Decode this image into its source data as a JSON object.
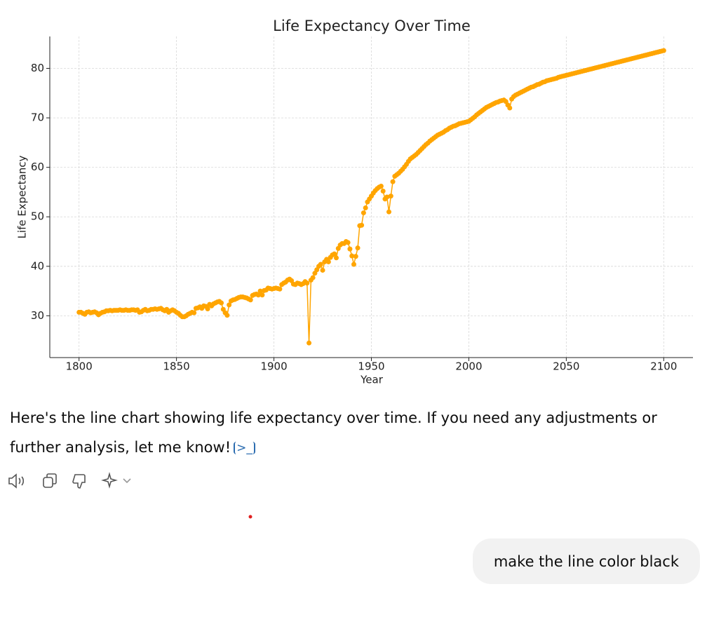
{
  "chart_data": {
    "type": "line",
    "title": "Life Expectancy Over Time",
    "x_label": "Year",
    "y_label": "Life Expectancy",
    "x": [
      1800,
      1801,
      1802,
      1803,
      1804,
      1805,
      1806,
      1807,
      1808,
      1809,
      1810,
      1811,
      1812,
      1813,
      1814,
      1815,
      1816,
      1817,
      1818,
      1819,
      1820,
      1821,
      1822,
      1823,
      1824,
      1825,
      1826,
      1827,
      1828,
      1829,
      1830,
      1831,
      1832,
      1833,
      1834,
      1835,
      1836,
      1837,
      1838,
      1839,
      1840,
      1841,
      1842,
      1843,
      1844,
      1845,
      1846,
      1847,
      1848,
      1849,
      1850,
      1851,
      1852,
      1853,
      1854,
      1855,
      1856,
      1857,
      1858,
      1859,
      1860,
      1861,
      1862,
      1863,
      1864,
      1865,
      1866,
      1867,
      1868,
      1869,
      1870,
      1871,
      1872,
      1873,
      1874,
      1875,
      1876,
      1877,
      1878,
      1879,
      1880,
      1881,
      1882,
      1883,
      1884,
      1885,
      1886,
      1887,
      1888,
      1889,
      1890,
      1891,
      1892,
      1893,
      1894,
      1895,
      1896,
      1897,
      1898,
      1899,
      1900,
      1901,
      1902,
      1903,
      1904,
      1905,
      1906,
      1907,
      1908,
      1909,
      1910,
      1911,
      1912,
      1913,
      1914,
      1915,
      1916,
      1917,
      1918,
      1919,
      1920,
      1921,
      1922,
      1923,
      1924,
      1925,
      1926,
      1927,
      1928,
      1929,
      1930,
      1931,
      1932,
      1933,
      1934,
      1935,
      1936,
      1937,
      1938,
      1939,
      1940,
      1941,
      1942,
      1943,
      1944,
      1945,
      1946,
      1947,
      1948,
      1949,
      1950,
      1951,
      1952,
      1953,
      1954,
      1955,
      1956,
      1957,
      1958,
      1959,
      1960,
      1961,
      1962,
      1963,
      1964,
      1965,
      1966,
      1967,
      1968,
      1969,
      1970,
      1971,
      1972,
      1973,
      1974,
      1975,
      1976,
      1977,
      1978,
      1979,
      1980,
      1981,
      1982,
      1983,
      1984,
      1985,
      1986,
      1987,
      1988,
      1989,
      1990,
      1991,
      1992,
      1993,
      1994,
      1995,
      1996,
      1997,
      1998,
      1999,
      2000,
      2001,
      2002,
      2003,
      2004,
      2005,
      2006,
      2007,
      2008,
      2009,
      2010,
      2011,
      2012,
      2013,
      2014,
      2015,
      2016,
      2017,
      2018,
      2019,
      2020,
      2021,
      2022,
      2023,
      2024,
      2025,
      2026,
      2027,
      2028,
      2029,
      2030,
      2031,
      2032,
      2033,
      2034,
      2035,
      2036,
      2037,
      2038,
      2039,
      2040,
      2041,
      2042,
      2043,
      2044,
      2045,
      2046,
      2047,
      2048,
      2049,
      2050,
      2051,
      2052,
      2053,
      2054,
      2055,
      2056,
      2057,
      2058,
      2059,
      2060,
      2061,
      2062,
      2063,
      2064,
      2065,
      2066,
      2067,
      2068,
      2069,
      2070,
      2071,
      2072,
      2073,
      2074,
      2075,
      2076,
      2077,
      2078,
      2079,
      2080,
      2081,
      2082,
      2083,
      2084,
      2085,
      2086,
      2087,
      2088,
      2089,
      2090,
      2091,
      2092,
      2093,
      2094,
      2095,
      2096,
      2097,
      2098,
      2099,
      2100
    ],
    "series": [
      {
        "color": "#ffa500",
        "values": [
          30.7,
          30.7,
          30.5,
          30.3,
          30.7,
          30.8,
          30.6,
          30.7,
          30.8,
          30.6,
          30.2,
          30.5,
          30.7,
          30.8,
          31.0,
          31.0,
          31.1,
          31.0,
          31.1,
          31.1,
          31.1,
          31.2,
          31.1,
          31.1,
          31.2,
          31.1,
          31.1,
          31.2,
          31.2,
          31.1,
          31.2,
          30.7,
          30.8,
          31.1,
          31.3,
          31.0,
          31.1,
          31.3,
          31.3,
          31.4,
          31.3,
          31.4,
          31.5,
          31.2,
          31.0,
          31.3,
          30.7,
          31.0,
          31.2,
          31.0,
          30.7,
          30.5,
          30.1,
          29.8,
          29.8,
          30.0,
          30.3,
          30.5,
          30.7,
          30.6,
          31.5,
          31.6,
          31.8,
          31.5,
          32.0,
          31.9,
          31.4,
          32.3,
          32.0,
          32.4,
          32.6,
          32.8,
          32.9,
          32.6,
          31.3,
          30.6,
          30.1,
          32.2,
          33.0,
          33.2,
          33.3,
          33.5,
          33.7,
          33.8,
          33.8,
          33.7,
          33.6,
          33.4,
          33.2,
          34.1,
          34.3,
          34.4,
          34.2,
          35.0,
          34.2,
          35.1,
          35.2,
          35.6,
          35.5,
          35.4,
          35.5,
          35.6,
          35.5,
          35.4,
          36.3,
          36.6,
          36.8,
          37.2,
          37.4,
          37.1,
          36.4,
          36.3,
          36.6,
          36.5,
          36.3,
          36.5,
          36.9,
          36.6,
          24.5,
          37.2,
          37.7,
          38.6,
          39.3,
          40.0,
          40.4,
          39.2,
          40.9,
          41.4,
          40.9,
          41.8,
          42.3,
          42.5,
          41.7,
          43.6,
          44.3,
          44.6,
          44.6,
          45.0,
          44.8,
          43.5,
          42.1,
          40.4,
          42.0,
          43.7,
          48.2,
          48.3,
          50.8,
          51.8,
          53.0,
          53.6,
          54.2,
          54.8,
          55.3,
          55.7,
          56.0,
          56.2,
          55.2,
          53.6,
          54.0,
          51.0,
          54.2,
          57.1,
          58.2,
          58.5,
          58.8,
          59.2,
          59.6,
          60.1,
          60.6,
          61.2,
          61.7,
          62.0,
          62.3,
          62.6,
          63.0,
          63.4,
          63.8,
          64.2,
          64.6,
          64.9,
          65.3,
          65.6,
          65.9,
          66.2,
          66.5,
          66.7,
          66.9,
          67.1,
          67.4,
          67.6,
          67.9,
          68.1,
          68.3,
          68.4,
          68.6,
          68.8,
          68.9,
          69.0,
          69.1,
          69.2,
          69.3,
          69.6,
          69.9,
          70.2,
          70.6,
          70.9,
          71.2,
          71.5,
          71.8,
          72.1,
          72.3,
          72.5,
          72.7,
          72.9,
          73.1,
          73.2,
          73.4,
          73.5,
          73.6,
          73.3,
          72.6,
          72.0,
          73.8,
          74.3,
          74.6,
          74.8,
          75.0,
          75.2,
          75.4,
          75.6,
          75.8,
          76.0,
          76.2,
          76.3,
          76.5,
          76.7,
          76.8,
          77.0,
          77.2,
          77.3,
          77.5,
          77.6,
          77.7,
          77.8,
          77.9,
          78.0,
          78.2,
          78.3,
          78.4,
          78.5,
          78.6,
          78.7,
          78.8,
          78.9,
          79.0,
          79.1,
          79.2,
          79.3,
          79.4,
          79.5,
          79.6,
          79.7,
          79.8,
          79.9,
          80.0,
          80.1,
          80.2,
          80.3,
          80.4,
          80.5,
          80.6,
          80.7,
          80.8,
          80.9,
          81.0,
          81.1,
          81.2,
          81.3,
          81.4,
          81.5,
          81.6,
          81.7,
          81.8,
          81.9,
          82.0,
          82.1,
          82.2,
          82.3,
          82.4,
          82.5,
          82.6,
          82.7,
          82.8,
          82.9,
          83.0,
          83.1,
          83.2,
          83.3,
          83.4,
          83.5,
          83.6
        ]
      }
    ],
    "xlim": [
      1785,
      2115
    ],
    "ylim": [
      21.55,
      86.45
    ],
    "xticks": [
      1800,
      1850,
      1900,
      1950,
      2000,
      2050,
      2100
    ],
    "yticks": [
      30,
      40,
      50,
      60,
      70,
      80
    ],
    "grid": true,
    "markers": true
  },
  "assistant_message": "Here's the line chart showing life expectancy over time. If you need any adjustments or further analysis, let me know!",
  "user_message": "make the line color black"
}
